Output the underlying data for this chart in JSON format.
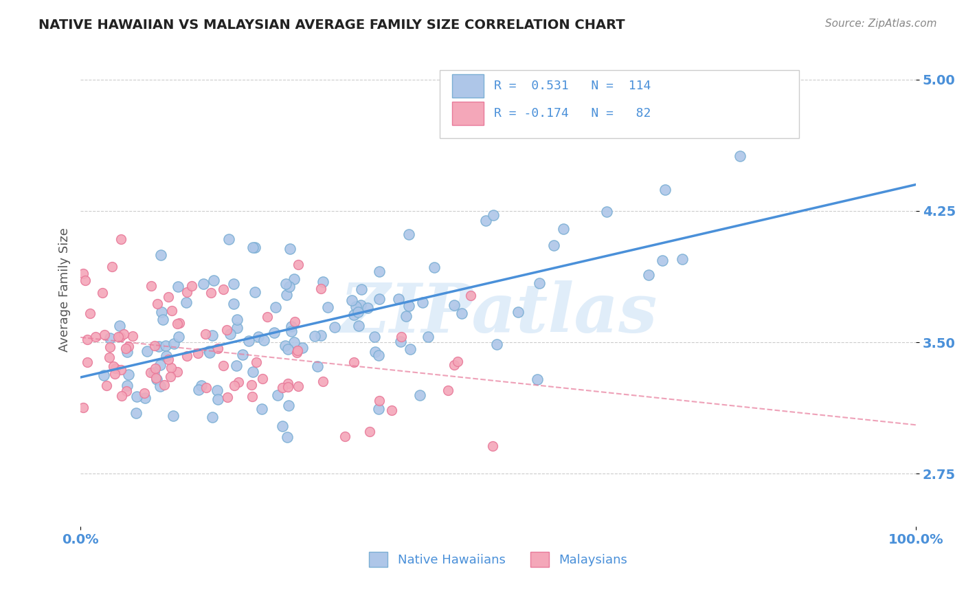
{
  "title": "NATIVE HAWAIIAN VS MALAYSIAN AVERAGE FAMILY SIZE CORRELATION CHART",
  "source_text": "Source: ZipAtlas.com",
  "ylabel": "Average Family Size",
  "xlim": [
    0,
    1
  ],
  "ylim": [
    2.45,
    5.15
  ],
  "yticks": [
    2.75,
    3.5,
    4.25,
    5.0
  ],
  "xtick_labels": [
    "0.0%",
    "100.0%"
  ],
  "watermark": "ZIPatlas",
  "nh_R": 0.531,
  "nh_N": 114,
  "my_R": -0.174,
  "my_N": 82,
  "dot_color_nh": "#aec6e8",
  "dot_edgecolor_nh": "#7bafd4",
  "dot_color_my": "#f4a7b9",
  "dot_edgecolor_my": "#e87a9a",
  "line_color_nh": "#4a90d9",
  "line_color_my": "#e87a9a",
  "grid_color": "#cccccc",
  "bg_color": "#ffffff",
  "title_color": "#222222",
  "axis_color": "#4a90d9",
  "watermark_color": "#c8dff5"
}
